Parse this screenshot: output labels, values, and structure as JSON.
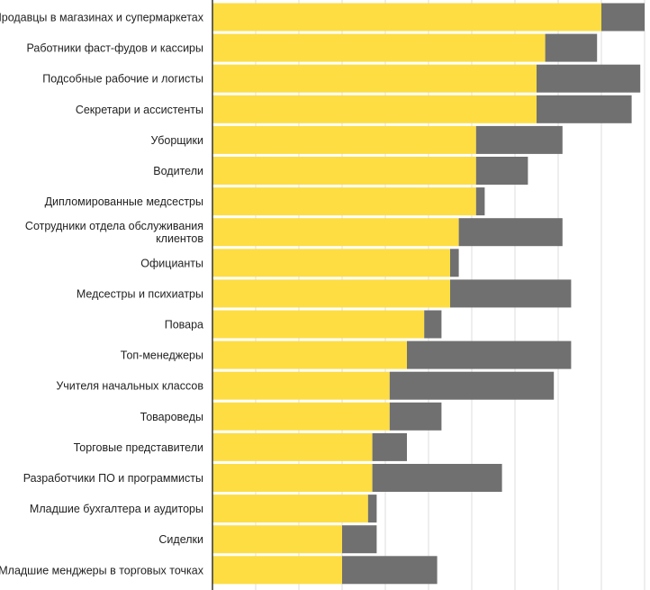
{
  "chart_data": {
    "type": "bar",
    "orientation": "horizontal",
    "stacked": true,
    "title": "",
    "xlabel": "",
    "ylabel": "",
    "xlim": [
      0,
      50
    ],
    "x_gridlines": [
      5,
      10,
      15,
      20,
      25,
      30,
      35,
      40,
      45,
      50
    ],
    "categories": [
      "Продавцы в магазинах и супермаркетах",
      "Работники фаст-фудов и кассиры",
      "Подсобные рабочие и логисты",
      "Секретари и ассистенты",
      "Уборщики",
      "Водители",
      "Дипломированные медсестры",
      "Сотрудники отдела обслуживания клиентов",
      "Официанты",
      "Медсестры и психиатры",
      "Повара",
      "Топ-менеджеры",
      "Учителя начальных классов",
      "Товароведы",
      "Торговые представители",
      "Разработчики ПО и программисты",
      "Младшие бухгалтера и аудиторы",
      "Сиделки",
      "Младшие менджеры в торговых точках"
    ],
    "label_lines": [
      [
        "Продавцы в магазинах и супермаркетах"
      ],
      [
        "Работники фаст-фудов и кассиры"
      ],
      [
        "Подсобные рабочие и логисты"
      ],
      [
        "Секретари и ассистенты"
      ],
      [
        "Уборщики"
      ],
      [
        "Водители"
      ],
      [
        "Дипломированные медсестры"
      ],
      [
        "Сотрудники отдела обслуживания",
        "клиентов"
      ],
      [
        "Официанты"
      ],
      [
        "Медсестры и психиатры"
      ],
      [
        "Повара"
      ],
      [
        "Топ-менеджеры"
      ],
      [
        "Учителя начальных классов"
      ],
      [
        "Товароведы"
      ],
      [
        "Торговые представители"
      ],
      [
        "Разработчики ПО и программисты"
      ],
      [
        "Младшие бухгалтера и аудиторы"
      ],
      [
        "Сиделки"
      ],
      [
        "Младшие менджеры в торговых точках"
      ]
    ],
    "series": [
      {
        "name": "series-1",
        "color": "#fddd42",
        "values": [
          45,
          38.5,
          37.5,
          37.5,
          30.5,
          30.5,
          30.5,
          28.5,
          27.5,
          27.5,
          24.5,
          22.5,
          20.5,
          20.5,
          18.5,
          18.5,
          18,
          15,
          15
        ]
      },
      {
        "name": "series-2",
        "color": "#707070",
        "values": [
          5,
          6,
          12,
          11,
          10,
          6,
          1,
          12,
          1,
          14,
          2,
          19,
          19,
          6,
          4,
          15,
          1,
          4,
          11
        ]
      }
    ],
    "colors": {
      "grid": "#dcdcdc",
      "axis": "#333333",
      "text": "#222222"
    }
  }
}
